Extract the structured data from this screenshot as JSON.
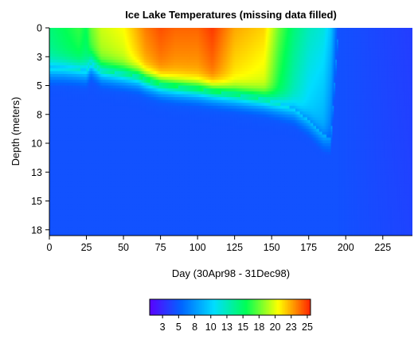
{
  "chart_data": {
    "type": "heatmap",
    "title": "Ice Lake Temperatures (missing data filled)",
    "xlabel": "Day  (30Apr98 - 31Dec98)",
    "ylabel": "Depth (meters)",
    "xlim": [
      0,
      245
    ],
    "ylim": [
      0,
      18
    ],
    "y_inverted": true,
    "x_ticks": [
      0,
      25,
      50,
      75,
      100,
      125,
      150,
      175,
      200,
      225
    ],
    "x_tick_labels": [
      "0",
      "25",
      "50",
      "75",
      "100",
      "125",
      "150",
      "175",
      "200",
      "225"
    ],
    "y_ticks": [
      0,
      2.5,
      5,
      7.5,
      10,
      12.5,
      15,
      17.5
    ],
    "y_tick_labels": [
      "0",
      "3",
      "5",
      "8",
      "10",
      "13",
      "15",
      "18"
    ],
    "colorbar": {
      "range": [
        1,
        26
      ],
      "ticks": [
        3,
        5.5,
        8,
        10.5,
        13,
        15.5,
        18,
        20.5,
        23,
        25.5
      ],
      "tick_labels": [
        "3",
        "5",
        "8",
        "10",
        "13",
        "15",
        "18",
        "20",
        "23",
        "25"
      ],
      "colors": [
        "#5a00ff",
        "#0066ff",
        "#00ddff",
        "#00ff55",
        "#ffff00",
        "#ff2200"
      ],
      "orientation": "horizontal",
      "position": "bottom"
    },
    "days": [
      0,
      10,
      20,
      25,
      28,
      35,
      50,
      60,
      65,
      75,
      85,
      100,
      110,
      125,
      145,
      155,
      165,
      175,
      185,
      190,
      195,
      245
    ],
    "surface_temp": [
      15,
      16,
      17,
      16,
      18,
      20,
      21,
      23,
      24,
      25,
      24.5,
      24.5,
      25.5,
      23,
      22,
      18,
      15,
      13,
      12,
      10,
      5,
      4
    ],
    "thermocline_depth": [
      3.5,
      3.5,
      3.6,
      3.7,
      3.0,
      3.7,
      4.0,
      4.2,
      4.5,
      4.9,
      5.1,
      5.3,
      5.5,
      5.8,
      6.2,
      6.6,
      7.0,
      8.0,
      9.3,
      9.5,
      0,
      0
    ],
    "bottom_temp": 5
  }
}
